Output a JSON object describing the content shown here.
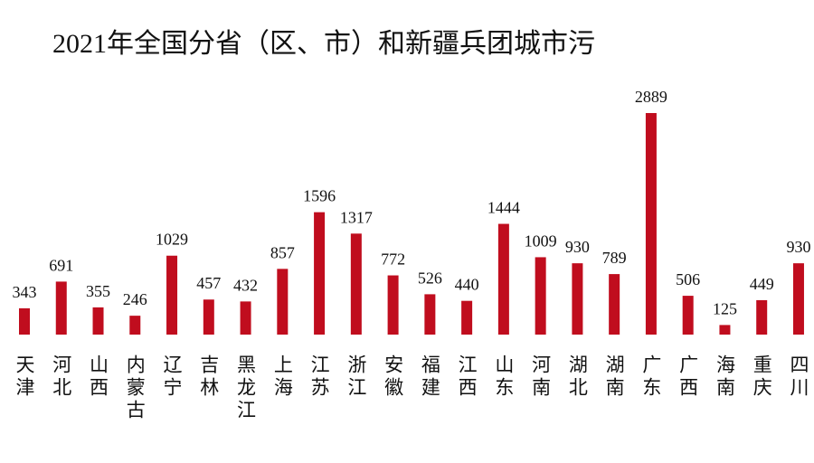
{
  "chart_data": {
    "type": "bar",
    "title": "2021年全国分省（区、市）和新疆兵团城市污",
    "categories": [
      "天津",
      "河北",
      "山西",
      "内蒙古",
      "辽宁",
      "吉林",
      "黑龙江",
      "上海",
      "江苏",
      "浙江",
      "安徽",
      "福建",
      "江西",
      "山东",
      "河南",
      "湖北",
      "湖南",
      "广东",
      "广西",
      "海南",
      "重庆",
      "四川"
    ],
    "values": [
      343,
      691,
      355,
      246,
      1029,
      457,
      432,
      857,
      1596,
      1317,
      772,
      526,
      440,
      1444,
      1009,
      930,
      789,
      2889,
      506,
      125,
      449,
      930
    ],
    "color": "#c00d1e"
  }
}
